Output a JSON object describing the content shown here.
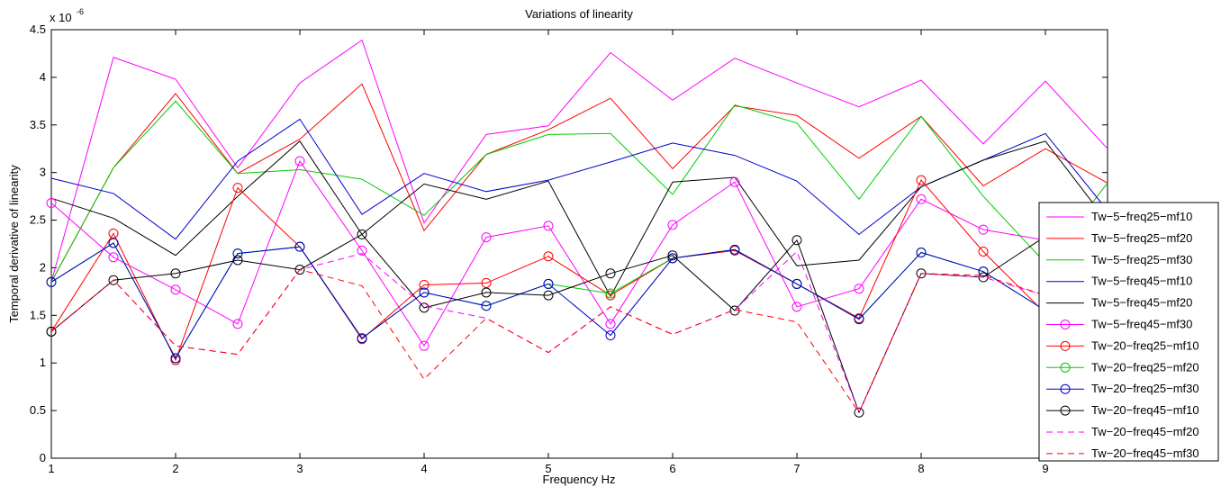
{
  "chart_data": {
    "type": "line",
    "title": "Variations of linearity",
    "xlabel": "Frequency Hz",
    "ylabel": "Temporal derivative of linearity",
    "y_exponent_label": "x 10",
    "y_exponent_power": "-6",
    "xlim": [
      1,
      9.5
    ],
    "ylim": [
      0,
      4.5
    ],
    "xticks": [
      "1",
      "2",
      "3",
      "4",
      "5",
      "6",
      "7",
      "8",
      "9"
    ],
    "yticks": [
      "0",
      "0.5",
      "1",
      "1.5",
      "2",
      "2.5",
      "3",
      "3.5",
      "4",
      "4.5"
    ],
    "grid": false,
    "legend_position": "right",
    "x": [
      1,
      1.5,
      2,
      2.5,
      3,
      3.5,
      4,
      4.5,
      5,
      5.5,
      6,
      6.5,
      7,
      7.5,
      8,
      8.5,
      9,
      9.5
    ],
    "series": [
      {
        "name": "Tw−5−freq25−mf10",
        "color": "#ff00ff",
        "style": "solid",
        "marker": "none",
        "values": [
          1.85,
          4.21,
          3.98,
          3.05,
          3.94,
          4.39,
          2.47,
          3.4,
          3.49,
          4.26,
          3.76,
          4.2,
          3.94,
          3.69,
          3.97,
          3.3,
          3.96,
          3.25
        ]
      },
      {
        "name": "Tw−5−freq25−mf20",
        "color": "#ff0000",
        "style": "solid",
        "marker": "none",
        "values": [
          1.85,
          3.05,
          3.83,
          2.99,
          3.35,
          3.93,
          2.39,
          3.19,
          3.45,
          3.78,
          3.04,
          3.7,
          3.6,
          3.15,
          3.59,
          2.86,
          3.25,
          2.89
        ]
      },
      {
        "name": "Tw−5−freq25−mf30",
        "color": "#00cc00",
        "style": "solid",
        "marker": "none",
        "values": [
          1.85,
          3.05,
          3.75,
          2.99,
          3.03,
          2.93,
          2.55,
          3.19,
          3.4,
          3.41,
          2.77,
          3.71,
          3.52,
          2.72,
          3.59,
          2.75,
          2.05,
          2.89
        ]
      },
      {
        "name": "Tw−5−freq45−mf10",
        "color": "#0000cc",
        "style": "solid",
        "marker": "none",
        "values": [
          2.94,
          2.78,
          2.3,
          3.12,
          3.56,
          2.56,
          2.99,
          2.8,
          2.92,
          3.11,
          3.31,
          3.18,
          2.91,
          2.35,
          2.85,
          3.13,
          3.41,
          2.6
        ]
      },
      {
        "name": "Tw−5−freq45−mf20",
        "color": "#000000",
        "style": "solid",
        "marker": "none",
        "values": [
          2.73,
          2.52,
          2.13,
          2.75,
          3.33,
          2.35,
          2.88,
          2.72,
          2.91,
          1.7,
          2.9,
          2.95,
          2.02,
          2.08,
          2.85,
          3.13,
          3.33,
          2.48
        ]
      },
      {
        "name": "Tw−5−freq45−mf30",
        "color": "#ff00ff",
        "style": "solid",
        "marker": "circle",
        "values": [
          2.68,
          2.11,
          1.77,
          1.41,
          3.12,
          2.18,
          1.18,
          2.32,
          2.44,
          1.41,
          2.45,
          2.9,
          1.59,
          1.78,
          2.72,
          2.4,
          2.29,
          2.2
        ]
      },
      {
        "name": "Tw−20−freq25−mf10",
        "color": "#ff0000",
        "style": "solid",
        "marker": "circle",
        "values": [
          1.33,
          2.36,
          1.03,
          2.84,
          2.22,
          1.25,
          1.82,
          1.84,
          2.12,
          1.71,
          2.1,
          2.18,
          1.83,
          1.47,
          2.92,
          2.17,
          1.52,
          1.45
        ]
      },
      {
        "name": "Tw−20−freq25−mf20",
        "color": "#00cc00",
        "style": "solid",
        "marker": "circle",
        "values": [
          1.85,
          2.26,
          1.05,
          2.15,
          2.22,
          1.26,
          1.74,
          1.6,
          1.83,
          1.73,
          2.1,
          2.19,
          1.83,
          1.46,
          2.16,
          1.96,
          1.55,
          1.45
        ]
      },
      {
        "name": "Tw−20−freq25−mf30",
        "color": "#0000cc",
        "style": "solid",
        "marker": "circle",
        "values": [
          1.85,
          2.26,
          1.05,
          2.15,
          2.22,
          1.26,
          1.74,
          1.6,
          1.83,
          1.29,
          2.1,
          2.19,
          1.83,
          1.46,
          2.16,
          1.96,
          1.55,
          1.45
        ]
      },
      {
        "name": "Tw−20−freq45−mf10",
        "color": "#000000",
        "style": "solid",
        "marker": "circle",
        "values": [
          1.33,
          1.87,
          1.94,
          2.08,
          1.98,
          2.35,
          1.58,
          1.74,
          1.71,
          1.94,
          2.13,
          1.55,
          2.29,
          0.48,
          1.94,
          1.9,
          2.33,
          2.2
        ]
      },
      {
        "name": "Tw−20−freq45−mf20",
        "color": "#ff00ff",
        "style": "dashed",
        "marker": "none",
        "values": [
          1.33,
          1.87,
          1.18,
          1.09,
          1.98,
          2.15,
          1.6,
          1.47,
          1.11,
          1.59,
          1.3,
          1.56,
          2.17,
          0.48,
          1.94,
          1.9,
          1.71,
          1.6
        ]
      },
      {
        "name": "Tw−20−freq45−mf30",
        "color": "#ff0000",
        "style": "dashed",
        "marker": "none",
        "values": [
          1.33,
          1.87,
          1.18,
          1.09,
          1.98,
          1.81,
          0.83,
          1.47,
          1.11,
          1.59,
          1.3,
          1.56,
          1.43,
          0.48,
          1.94,
          1.92,
          1.71,
          1.6
        ]
      }
    ]
  }
}
